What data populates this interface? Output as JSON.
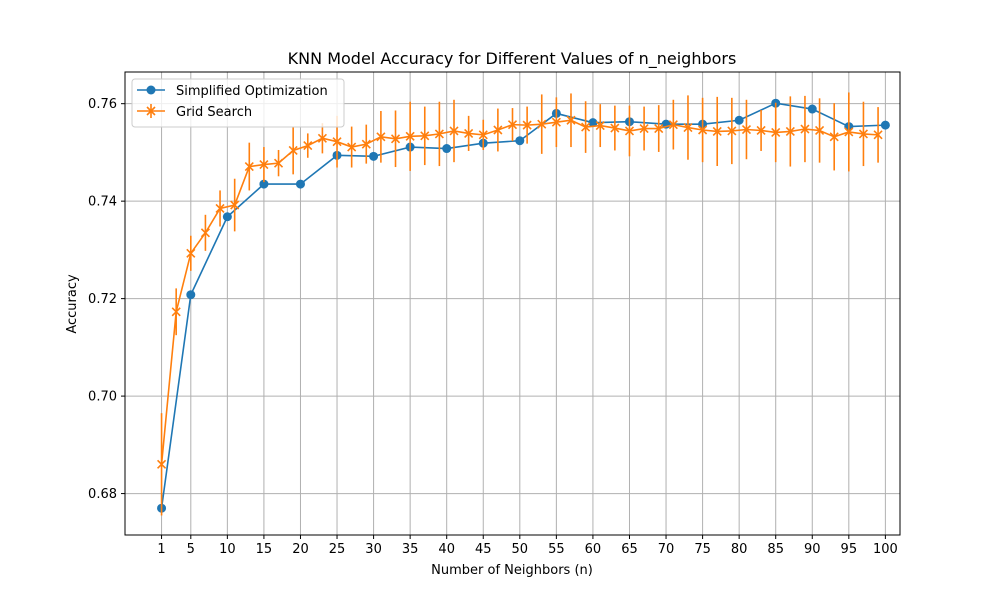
{
  "chart_data": {
    "type": "line",
    "title": "KNN Model Accuracy for Different Values of n_neighbors",
    "xlabel": "Number of Neighbors (n)",
    "ylabel": "Accuracy",
    "xlim": [
      -4,
      102
    ],
    "ylim": [
      0.6715,
      0.7665
    ],
    "xticks": [
      1,
      5,
      10,
      15,
      20,
      25,
      30,
      35,
      40,
      45,
      50,
      55,
      60,
      65,
      70,
      75,
      80,
      85,
      90,
      95,
      100
    ],
    "xtick_labels": [
      "1",
      "5",
      "10",
      "15",
      "20",
      "25",
      "30",
      "35",
      "40",
      "45",
      "50",
      "55",
      "60",
      "65",
      "70",
      "75",
      "80",
      "85",
      "90",
      "95",
      "100"
    ],
    "yticks": [
      0.68,
      0.7,
      0.72,
      0.74,
      0.76
    ],
    "ytick_labels": [
      "0.68",
      "0.70",
      "0.72",
      "0.74",
      "0.76"
    ],
    "grid": true,
    "legend_position": "top-left",
    "series": [
      {
        "name": "Simplified Optimization",
        "color": "#1f77b4",
        "marker": "circle",
        "x": [
          1,
          5,
          10,
          15,
          20,
          25,
          30,
          35,
          40,
          45,
          50,
          55,
          60,
          65,
          70,
          75,
          80,
          85,
          90,
          95,
          100
        ],
        "y": [
          0.677,
          0.7208,
          0.7368,
          0.7435,
          0.7435,
          0.7494,
          0.7492,
          0.7511,
          0.7508,
          0.7519,
          0.7524,
          0.758,
          0.7561,
          0.7563,
          0.7558,
          0.7558,
          0.7566,
          0.7601,
          0.7589,
          0.7553,
          0.7556
        ]
      },
      {
        "name": "Grid Search",
        "color": "#ff7f0e",
        "marker": "x",
        "x": [
          1,
          3,
          5,
          7,
          9,
          11,
          13,
          15,
          17,
          19,
          21,
          23,
          25,
          27,
          29,
          31,
          33,
          35,
          37,
          39,
          41,
          43,
          45,
          47,
          49,
          51,
          53,
          55,
          57,
          59,
          61,
          63,
          65,
          67,
          69,
          71,
          73,
          75,
          77,
          79,
          81,
          83,
          85,
          87,
          89,
          91,
          93,
          95,
          97,
          99
        ],
        "y": [
          0.686,
          0.7173,
          0.7293,
          0.7335,
          0.7385,
          0.7392,
          0.7471,
          0.7475,
          0.7478,
          0.7504,
          0.7514,
          0.7529,
          0.7522,
          0.7511,
          0.7517,
          0.7532,
          0.7528,
          0.7533,
          0.7534,
          0.7538,
          0.7544,
          0.7539,
          0.7536,
          0.7546,
          0.7557,
          0.7556,
          0.7558,
          0.7562,
          0.7566,
          0.7552,
          0.7555,
          0.755,
          0.7544,
          0.7549,
          0.7549,
          0.7557,
          0.7551,
          0.7546,
          0.7543,
          0.7544,
          0.7547,
          0.7545,
          0.7541,
          0.7543,
          0.7548,
          0.7545,
          0.7532,
          0.7542,
          0.7538,
          0.7536
        ],
        "error": [
          0.0105,
          0.0048,
          0.0036,
          0.0037,
          0.0037,
          0.0054,
          0.0049,
          0.0036,
          0.0027,
          0.0049,
          0.0025,
          0.0031,
          0.0053,
          0.0042,
          0.004,
          0.0053,
          0.0058,
          0.0071,
          0.006,
          0.0066,
          0.0064,
          0.0036,
          0.0031,
          0.0044,
          0.0034,
          0.0038,
          0.0061,
          0.0051,
          0.0055,
          0.0053,
          0.0044,
          0.0046,
          0.0052,
          0.0045,
          0.0048,
          0.0051,
          0.0066,
          0.0066,
          0.0071,
          0.0068,
          0.0061,
          0.0042,
          0.0061,
          0.0072,
          0.0068,
          0.0066,
          0.0069,
          0.0081,
          0.0066,
          0.0057
        ]
      }
    ]
  }
}
